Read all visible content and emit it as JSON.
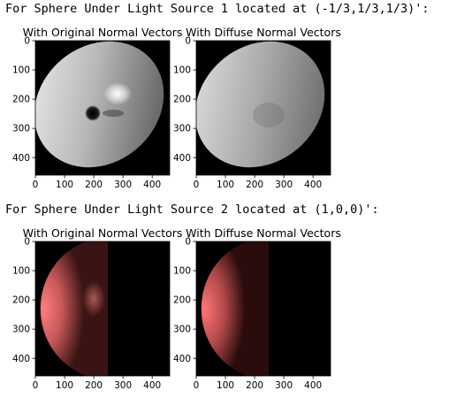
{
  "headings": {
    "light1": "For Sphere Under Light Source 1 located at (-1/3,1/3,1/3)':",
    "light2": "For Sphere Under Light Source 2 located at (1,0,0)':"
  },
  "colors": {
    "light1_tone": "#ffffff",
    "light2_tone": "#f07070",
    "background": "#000000"
  },
  "chart_data": [
    {
      "type": "heatmap",
      "title": "With Original Normal Vectors",
      "xticks": [
        0,
        100,
        200,
        300,
        400
      ],
      "yticks": [
        0,
        100,
        200,
        300,
        400
      ],
      "xlim": [
        0,
        460
      ],
      "ylim": [
        460,
        0
      ],
      "tone": "white",
      "light": [
        -0.3333,
        0.3333,
        0.3333
      ],
      "normals": "original"
    },
    {
      "type": "heatmap",
      "title": "With Diffuse Normal Vectors",
      "xticks": [
        0,
        100,
        200,
        300,
        400
      ],
      "yticks": [
        0,
        100,
        200,
        300,
        400
      ],
      "xlim": [
        0,
        460
      ],
      "ylim": [
        460,
        0
      ],
      "tone": "white",
      "light": [
        -0.3333,
        0.3333,
        0.3333
      ],
      "normals": "diffuse"
    },
    {
      "type": "heatmap",
      "title": "With Original Normal Vectors",
      "xticks": [
        0,
        100,
        200,
        300,
        400
      ],
      "yticks": [
        0,
        100,
        200,
        300,
        400
      ],
      "xlim": [
        0,
        460
      ],
      "ylim": [
        460,
        0
      ],
      "tone": "red",
      "light": [
        1,
        0,
        0
      ],
      "normals": "original"
    },
    {
      "type": "heatmap",
      "title": "With Diffuse Normal Vectors",
      "xticks": [
        0,
        100,
        200,
        300,
        400
      ],
      "yticks": [
        0,
        100,
        200,
        300,
        400
      ],
      "xlim": [
        0,
        460
      ],
      "ylim": [
        460,
        0
      ],
      "tone": "red",
      "light": [
        1,
        0,
        0
      ],
      "normals": "diffuse"
    }
  ]
}
